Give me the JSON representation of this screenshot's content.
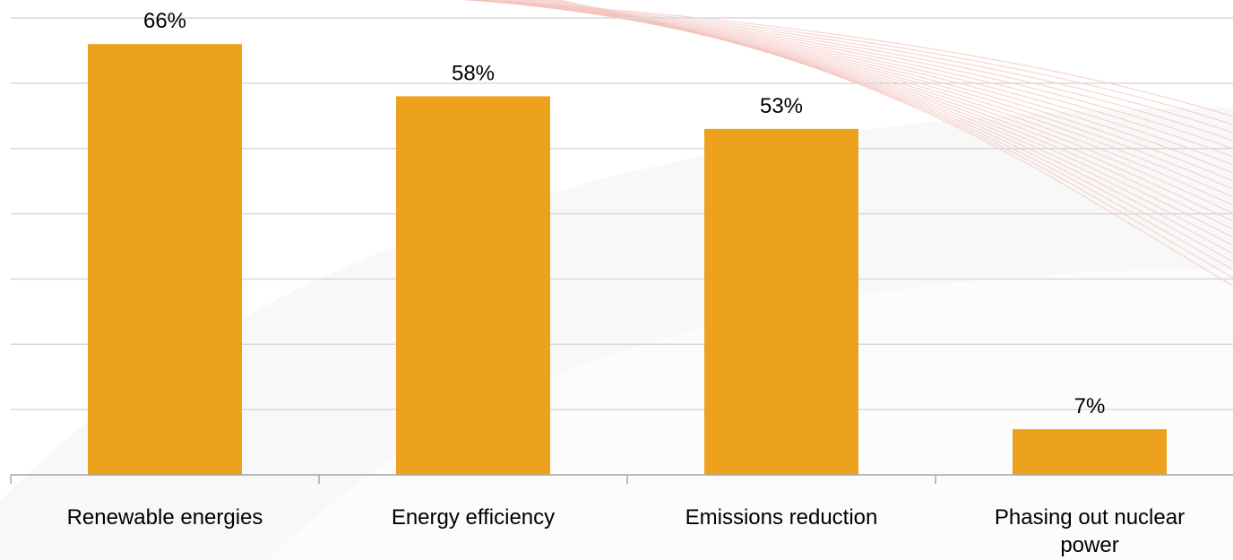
{
  "chart_data": {
    "type": "bar",
    "title": "",
    "xlabel": "",
    "ylabel": "",
    "categories": [
      [
        "Renewable energies"
      ],
      [
        "Energy efficiency"
      ],
      [
        "Emissions reduction"
      ],
      [
        "Phasing out nuclear",
        "power"
      ]
    ],
    "values": [
      66,
      58,
      53,
      7
    ],
    "data_labels": [
      "66%",
      "58%",
      "53%",
      "7%"
    ],
    "ylim": [
      0,
      70
    ],
    "y_gridlines": [
      10,
      20,
      30,
      40,
      50,
      60,
      70
    ],
    "grid": true,
    "legend": "none"
  },
  "colors": {
    "bar": "#EDA21E",
    "gridline": "#D9D9D9",
    "axis": "#A6A6A6",
    "background_swoosh": "#F2F2F2",
    "background_lines": "#F4C3BE"
  },
  "background": {
    "decoration": "decorative swoosh watermark with red arc lines"
  }
}
